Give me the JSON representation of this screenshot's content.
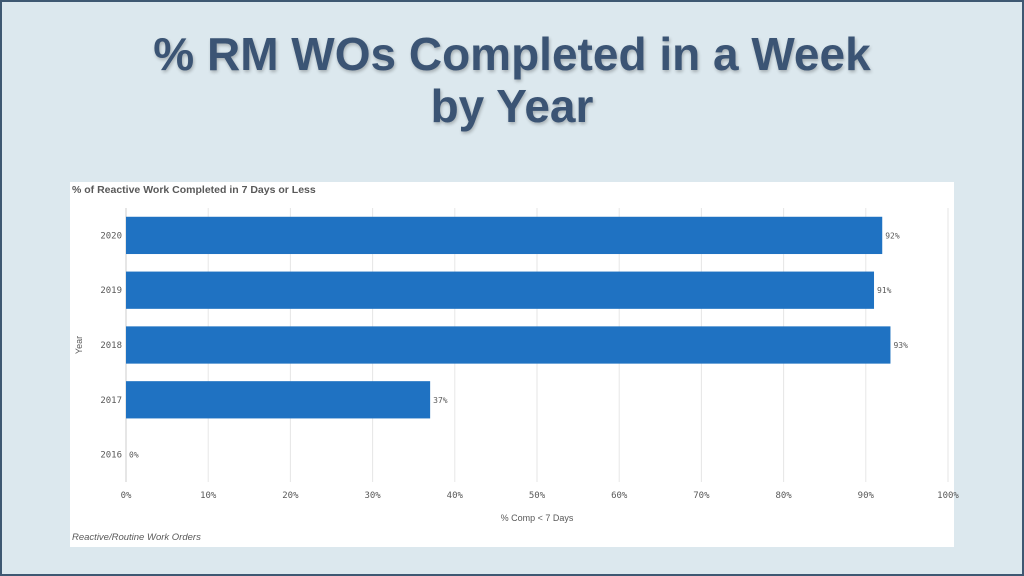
{
  "slide": {
    "title_line1": "% RM WOs Completed in a Week",
    "title_line2": "by Year"
  },
  "chart_data": {
    "type": "bar",
    "orientation": "horizontal",
    "title": "% of Reactive Work Completed in 7 Days or Less",
    "xlabel": "% Comp < 7 Days",
    "ylabel": "Year",
    "categories": [
      "2020",
      "2019",
      "2018",
      "2017",
      "2016"
    ],
    "values": [
      92,
      91,
      93,
      37,
      0
    ],
    "data_labels": [
      "92%",
      "91%",
      "93%",
      "37%",
      "0%"
    ],
    "xlim": [
      0,
      100
    ],
    "xticks": [
      "0%",
      "10%",
      "20%",
      "30%",
      "40%",
      "50%",
      "60%",
      "70%",
      "80%",
      "90%",
      "100%"
    ],
    "grid": true,
    "bar_color": "#1f72c2",
    "footnote": "Reactive/Routine Work Orders"
  }
}
